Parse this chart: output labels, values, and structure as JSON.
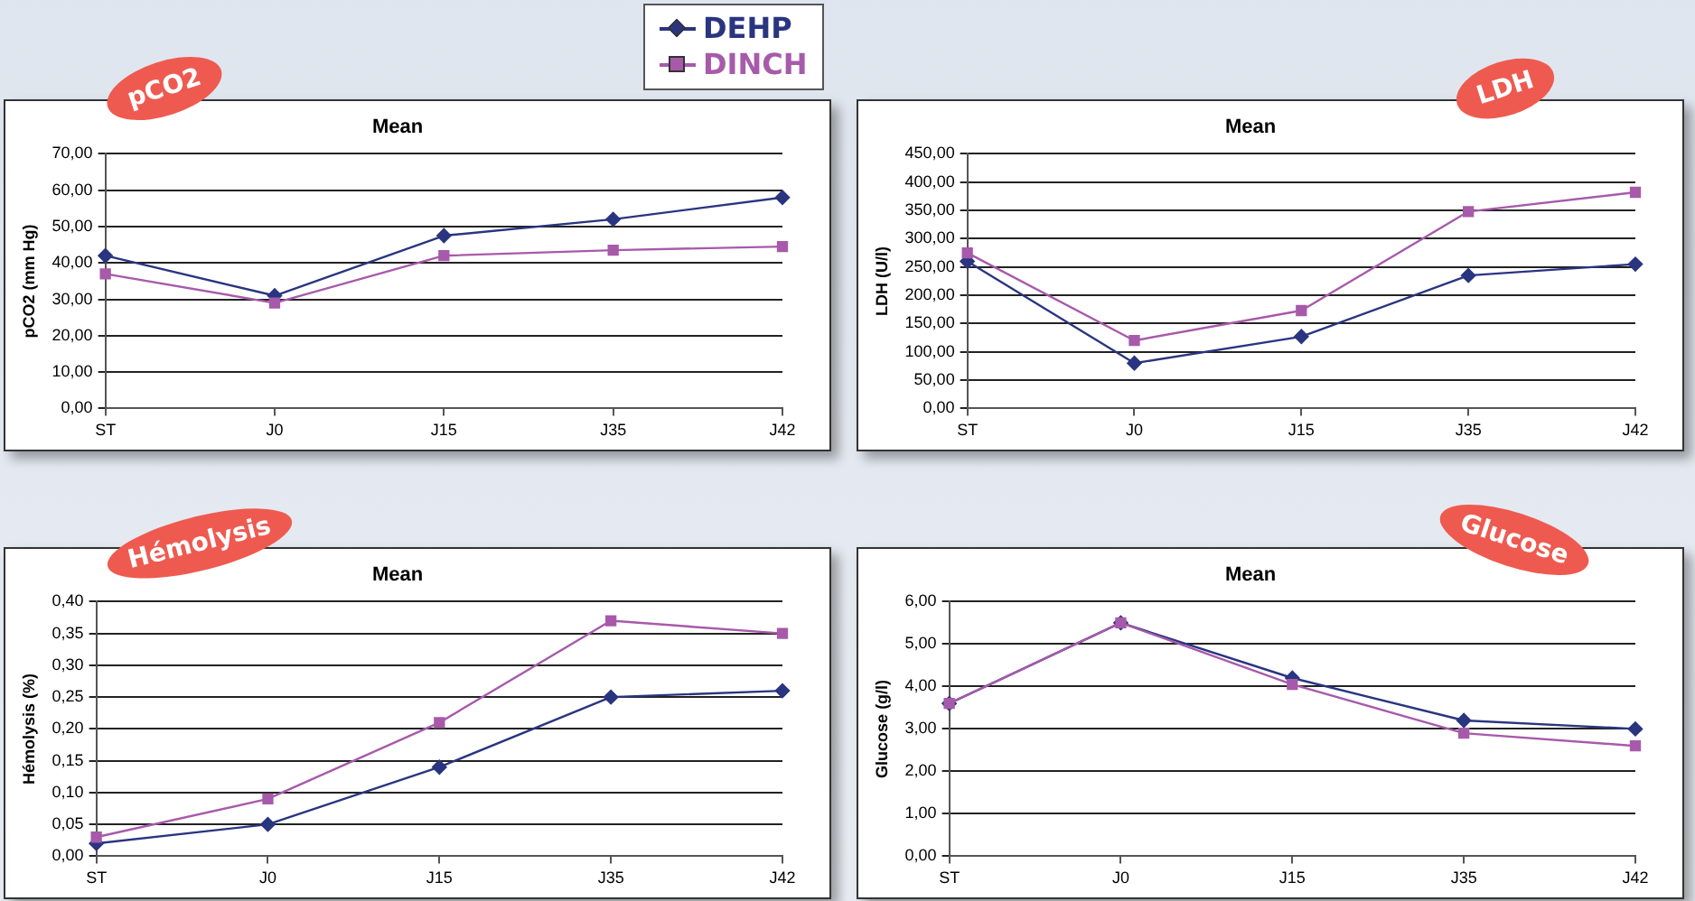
{
  "chart_data": [
    {
      "type": "line",
      "title": "pCO2",
      "subtitle": "Mean",
      "ylabel": "pCO2 (mm Hg)",
      "categories": [
        "ST",
        "J0",
        "J15",
        "J35",
        "J42"
      ],
      "series": [
        {
          "name": "DEHP",
          "color": "#2a3580",
          "marker": "diamond",
          "values": [
            42,
            31,
            47.5,
            52,
            58
          ]
        },
        {
          "name": "DINCH",
          "color": "#a75aaa",
          "marker": "square",
          "values": [
            37,
            29,
            42,
            43.5,
            44.5
          ]
        }
      ],
      "ylim": [
        0,
        70
      ],
      "yticks": [
        {
          "value": 0,
          "label": "0,00"
        },
        {
          "value": 10,
          "label": "10,00"
        },
        {
          "value": 20,
          "label": "20,00"
        },
        {
          "value": 30,
          "label": "30,00"
        },
        {
          "value": 40,
          "label": "40,00"
        },
        {
          "value": 50,
          "label": "50,00"
        },
        {
          "value": 60,
          "label": "60,00"
        },
        {
          "value": 70,
          "label": "70,00"
        }
      ],
      "grid": "y",
      "legend": "top right"
    },
    {
      "type": "line",
      "title": "LDH",
      "subtitle": "Mean",
      "ylabel": "LDH (U/l)",
      "categories": [
        "ST",
        "J0",
        "J15",
        "J35",
        "J42"
      ],
      "series": [
        {
          "color": "#2a3580",
          "marker": "diamond",
          "values": [
            260,
            80,
            127,
            235,
            255
          ]
        },
        {
          "color": "#a75aaa",
          "marker": "square",
          "values": [
            275,
            120,
            173,
            348,
            382
          ]
        }
      ],
      "ylim": [
        0,
        450
      ],
      "yticks": [
        {
          "value": 0,
          "label": "0,00"
        },
        {
          "value": 50,
          "label": "50,00"
        },
        {
          "value": 100,
          "label": "100,00"
        },
        {
          "value": 150,
          "label": "150,00"
        },
        {
          "value": 200,
          "label": "200,00"
        },
        {
          "value": 250,
          "label": "250,00"
        },
        {
          "value": 300,
          "label": "300,00"
        },
        {
          "value": 350,
          "label": "350,00"
        },
        {
          "value": 400,
          "label": "400,00"
        },
        {
          "value": 450,
          "label": "450,00"
        }
      ],
      "grid": "y"
    },
    {
      "type": "line",
      "title": "Hémolysis",
      "subtitle": "Mean",
      "ylabel": "Hémolysis (%)",
      "categories": [
        "ST",
        "J0",
        "J15",
        "J35",
        "J42"
      ],
      "series": [
        {
          "color": "#2a3580",
          "marker": "diamond",
          "values": [
            0.02,
            0.05,
            0.14,
            0.25,
            0.26
          ]
        },
        {
          "color": "#a75aaa",
          "marker": "square",
          "values": [
            0.03,
            0.09,
            0.21,
            0.37,
            0.35
          ]
        }
      ],
      "ylim": [
        0,
        0.4
      ],
      "yticks": [
        {
          "value": 0,
          "label": "0,00"
        },
        {
          "value": 0.05,
          "label": "0,05"
        },
        {
          "value": 0.1,
          "label": "0,10"
        },
        {
          "value": 0.15,
          "label": "0,15"
        },
        {
          "value": 0.2,
          "label": "0,20"
        },
        {
          "value": 0.25,
          "label": "0,25"
        },
        {
          "value": 0.3,
          "label": "0,30"
        },
        {
          "value": 0.35,
          "label": "0,35"
        },
        {
          "value": 0.4,
          "label": "0,40"
        }
      ],
      "grid": "y"
    },
    {
      "type": "line",
      "title": "Glucose",
      "subtitle": "Mean",
      "ylabel": "Glucose (g/l)",
      "categories": [
        "ST",
        "J0",
        "J15",
        "J35",
        "J42"
      ],
      "series": [
        {
          "color": "#2a3580",
          "marker": "diamond",
          "values": [
            3.6,
            5.5,
            4.2,
            3.2,
            3.0
          ]
        },
        {
          "color": "#a75aaa",
          "marker": "square",
          "values": [
            3.6,
            5.5,
            4.05,
            2.9,
            2.6
          ]
        }
      ],
      "ylim": [
        0,
        6
      ],
      "yticks": [
        {
          "value": 0,
          "label": "0,00"
        },
        {
          "value": 1,
          "label": "1,00"
        },
        {
          "value": 2,
          "label": "2,00"
        },
        {
          "value": 3,
          "label": "3,00"
        },
        {
          "value": 4,
          "label": "4,00"
        },
        {
          "value": 5,
          "label": "5,00"
        },
        {
          "value": 6,
          "label": "6,00"
        }
      ],
      "grid": "y"
    }
  ]
}
